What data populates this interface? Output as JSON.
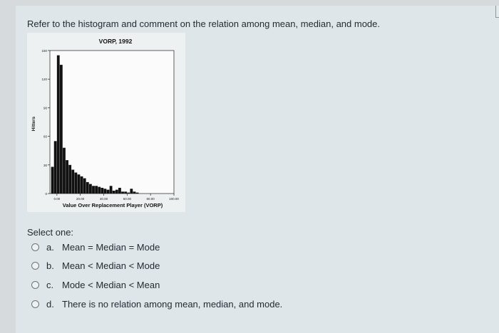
{
  "question": "Refer to the histogram and comment on the relation among mean, median, and mode.",
  "chart_data": {
    "type": "bar",
    "title": "VORP, 1992",
    "xlabel": "Value Over Replacement Player (VORP)",
    "ylabel": "Hitters",
    "xlim": [
      0,
      100
    ],
    "ylim": [
      0,
      150
    ],
    "xticks": [
      "0.00",
      "20.00",
      "40.00",
      "60.00",
      "80.00",
      "100.00"
    ],
    "yticks": [
      "0",
      "30",
      "60",
      "90",
      "120",
      "150"
    ],
    "bin_width": 2.5,
    "bin_starts": [
      -5,
      -2.5,
      0,
      2.5,
      5,
      7.5,
      10,
      12.5,
      15,
      17.5,
      20,
      22.5,
      25,
      27.5,
      30,
      32.5,
      35,
      37.5,
      40,
      42.5,
      45,
      47.5,
      50,
      52.5,
      55,
      57.5,
      60,
      62.5,
      65,
      67.5
    ],
    "values": [
      28,
      55,
      145,
      135,
      48,
      35,
      30,
      25,
      22,
      20,
      18,
      16,
      12,
      10,
      8,
      8,
      7,
      6,
      5,
      4,
      8,
      3,
      4,
      6,
      2,
      2,
      1,
      5,
      2,
      1
    ]
  },
  "select_label": "Select one:",
  "options": [
    {
      "letter": "a.",
      "text": "Mean = Median = Mode"
    },
    {
      "letter": "b.",
      "text": "Mean < Median < Mode"
    },
    {
      "letter": "c.",
      "text": "Mode < Median < Mean"
    },
    {
      "letter": "d.",
      "text": "There is no relation among mean, median, and mode."
    }
  ]
}
